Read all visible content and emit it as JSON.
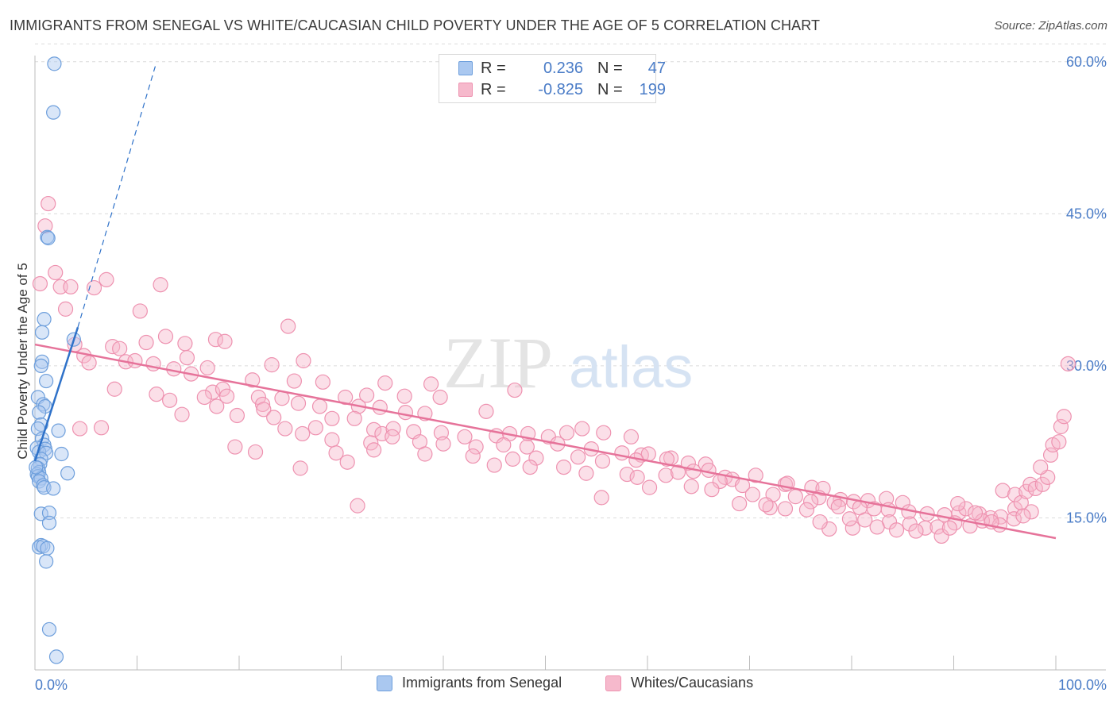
{
  "header": {
    "title": "IMMIGRANTS FROM SENEGAL VS WHITE/CAUCASIAN CHILD POVERTY UNDER THE AGE OF 5 CORRELATION CHART",
    "source": "Source: ZipAtlas.com"
  },
  "watermark": {
    "zip": "ZIP",
    "atlas": "atlas"
  },
  "stats": {
    "senegal": {
      "r_label": "R =",
      "r_value": "0.236",
      "n_label": "N =",
      "n_value": "47"
    },
    "white": {
      "r_label": "R =",
      "r_value": "-0.825",
      "n_label": "N =",
      "n_value": "199"
    }
  },
  "legend": {
    "senegal": "Immigrants from Senegal",
    "white": "Whites/Caucasians"
  },
  "colors": {
    "senegal_fill": "#aac8f0",
    "senegal_stroke": "#6e9fdc",
    "senegal_line": "#2f72c9",
    "white_fill": "#f6b9cc",
    "white_stroke": "#ee92b0",
    "white_line": "#e6739a",
    "tick_label": "#4a7cc7",
    "grid": "#dcdcdc"
  },
  "chart_data": {
    "type": "scatter",
    "xlabel": "",
    "ylabel": "Child Poverty Under the Age of 5",
    "x_tick_labels": [
      "0.0%",
      "100.0%"
    ],
    "y_tick_labels": [
      "15.0%",
      "30.0%",
      "45.0%",
      "60.0%"
    ],
    "y_ticks": [
      15,
      30,
      45,
      60
    ],
    "xlim": [
      0,
      100
    ],
    "ylim": [
      0,
      62
    ],
    "grid": true,
    "legend_position": "bottom",
    "series": [
      {
        "name": "Immigrants from Senegal",
        "r": 0.236,
        "n": 47,
        "trend_solid": [
          [
            0,
            20.6
          ],
          [
            4.2,
            33.8
          ]
        ],
        "trend_dashed": [
          [
            4.2,
            33.8
          ],
          [
            11.8,
            59.6
          ]
        ],
        "points": [
          [
            1.9,
            59.8
          ],
          [
            1.8,
            55.0
          ],
          [
            1.2,
            42.7
          ],
          [
            1.3,
            42.6
          ],
          [
            0.9,
            34.6
          ],
          [
            0.7,
            33.3
          ],
          [
            3.8,
            32.6
          ],
          [
            0.7,
            30.4
          ],
          [
            0.6,
            30.0
          ],
          [
            1.1,
            28.5
          ],
          [
            0.3,
            26.9
          ],
          [
            0.8,
            26.2
          ],
          [
            1.0,
            26.0
          ],
          [
            0.4,
            25.4
          ],
          [
            0.6,
            24.2
          ],
          [
            2.3,
            23.6
          ],
          [
            0.3,
            23.8
          ],
          [
            0.7,
            22.8
          ],
          [
            0.9,
            22.2
          ],
          [
            0.2,
            21.9
          ],
          [
            1.0,
            21.8
          ],
          [
            0.4,
            21.5
          ],
          [
            1.1,
            21.4
          ],
          [
            2.6,
            21.3
          ],
          [
            0.6,
            20.8
          ],
          [
            0.5,
            20.3
          ],
          [
            0.3,
            19.9
          ],
          [
            0.4,
            19.5
          ],
          [
            0.2,
            19.3
          ],
          [
            3.2,
            19.4
          ],
          [
            0.3,
            19.1
          ],
          [
            0.6,
            18.9
          ],
          [
            0.4,
            18.6
          ],
          [
            0.8,
            18.2
          ],
          [
            0.9,
            18.0
          ],
          [
            1.8,
            17.9
          ],
          [
            0.6,
            15.4
          ],
          [
            1.4,
            15.5
          ],
          [
            1.4,
            14.5
          ],
          [
            0.6,
            12.3
          ],
          [
            0.4,
            12.1
          ],
          [
            0.8,
            12.2
          ],
          [
            1.2,
            12.0
          ],
          [
            1.1,
            10.7
          ],
          [
            1.4,
            4.0
          ],
          [
            2.1,
            1.3
          ],
          [
            0.1,
            20.0
          ]
        ]
      },
      {
        "name": "Whites/Caucasians",
        "r": -0.825,
        "n": 199,
        "trend": [
          [
            0,
            32.1
          ],
          [
            100,
            13.0
          ]
        ],
        "points": [
          [
            1.3,
            46.0
          ],
          [
            1.0,
            43.8
          ],
          [
            2.0,
            39.2
          ],
          [
            0.5,
            38.1
          ],
          [
            2.5,
            37.8
          ],
          [
            3.5,
            37.8
          ],
          [
            5.8,
            37.7
          ],
          [
            7.0,
            38.5
          ],
          [
            12.3,
            38.0
          ],
          [
            3.0,
            35.6
          ],
          [
            10.3,
            35.4
          ],
          [
            24.8,
            33.9
          ],
          [
            12.8,
            32.9
          ],
          [
            3.9,
            32.1
          ],
          [
            10.9,
            32.3
          ],
          [
            14.7,
            32.2
          ],
          [
            17.7,
            32.6
          ],
          [
            18.6,
            32.4
          ],
          [
            7.6,
            31.9
          ],
          [
            8.3,
            31.7
          ],
          [
            4.8,
            31.0
          ],
          [
            8.9,
            30.4
          ],
          [
            9.8,
            30.5
          ],
          [
            5.3,
            30.3
          ],
          [
            11.6,
            30.2
          ],
          [
            14.9,
            30.8
          ],
          [
            23.2,
            30.1
          ],
          [
            26.3,
            30.5
          ],
          [
            16.9,
            29.8
          ],
          [
            13.6,
            29.7
          ],
          [
            15.3,
            29.2
          ],
          [
            21.3,
            28.6
          ],
          [
            25.4,
            28.5
          ],
          [
            28.2,
            28.4
          ],
          [
            34.3,
            28.3
          ],
          [
            38.8,
            28.2
          ],
          [
            7.8,
            27.7
          ],
          [
            11.9,
            27.2
          ],
          [
            17.4,
            27.4
          ],
          [
            18.4,
            27.7
          ],
          [
            21.9,
            26.9
          ],
          [
            24.2,
            26.8
          ],
          [
            16.6,
            26.9
          ],
          [
            18.8,
            27.0
          ],
          [
            30.4,
            26.9
          ],
          [
            32.5,
            27.1
          ],
          [
            36.2,
            27.0
          ],
          [
            39.7,
            26.9
          ],
          [
            47.0,
            27.6
          ],
          [
            13.2,
            26.6
          ],
          [
            17.8,
            26.0
          ],
          [
            22.3,
            26.2
          ],
          [
            25.8,
            26.3
          ],
          [
            27.9,
            26.0
          ],
          [
            31.7,
            26.0
          ],
          [
            33.8,
            25.9
          ],
          [
            36.3,
            25.4
          ],
          [
            14.4,
            25.2
          ],
          [
            19.8,
            25.1
          ],
          [
            22.4,
            25.7
          ],
          [
            23.4,
            24.9
          ],
          [
            29.1,
            24.8
          ],
          [
            31.3,
            24.8
          ],
          [
            38.2,
            25.3
          ],
          [
            44.2,
            25.5
          ],
          [
            4.4,
            23.8
          ],
          [
            6.5,
            23.9
          ],
          [
            24.5,
            23.8
          ],
          [
            27.5,
            23.9
          ],
          [
            33.2,
            23.7
          ],
          [
            34.0,
            23.3
          ],
          [
            35.1,
            23.8
          ],
          [
            37.1,
            23.5
          ],
          [
            39.8,
            23.4
          ],
          [
            42.1,
            23.0
          ],
          [
            45.2,
            23.1
          ],
          [
            46.5,
            23.3
          ],
          [
            48.3,
            23.3
          ],
          [
            50.3,
            23.0
          ],
          [
            52.1,
            23.4
          ],
          [
            53.6,
            23.8
          ],
          [
            55.7,
            23.4
          ],
          [
            58.4,
            23.0
          ],
          [
            19.6,
            22.0
          ],
          [
            26.2,
            23.3
          ],
          [
            29.1,
            22.7
          ],
          [
            32.9,
            22.4
          ],
          [
            35.0,
            23.0
          ],
          [
            37.7,
            22.5
          ],
          [
            40.0,
            22.3
          ],
          [
            43.2,
            22.0
          ],
          [
            45.9,
            22.2
          ],
          [
            48.2,
            22.0
          ],
          [
            51.2,
            22.3
          ],
          [
            54.5,
            21.8
          ],
          [
            57.5,
            21.4
          ],
          [
            59.4,
            21.2
          ],
          [
            60.1,
            21.3
          ],
          [
            62.3,
            20.9
          ],
          [
            21.6,
            21.5
          ],
          [
            29.5,
            21.4
          ],
          [
            33.2,
            21.7
          ],
          [
            38.2,
            21.3
          ],
          [
            42.9,
            21.1
          ],
          [
            46.8,
            20.8
          ],
          [
            49.1,
            20.9
          ],
          [
            53.2,
            21.0
          ],
          [
            55.6,
            20.6
          ],
          [
            58.9,
            20.7
          ],
          [
            61.9,
            20.8
          ],
          [
            64.0,
            20.4
          ],
          [
            65.7,
            20.3
          ],
          [
            26.0,
            19.9
          ],
          [
            30.6,
            20.5
          ],
          [
            45.0,
            20.2
          ],
          [
            48.5,
            20.0
          ],
          [
            51.8,
            20.0
          ],
          [
            54.0,
            19.4
          ],
          [
            58.0,
            19.3
          ],
          [
            59.0,
            19.0
          ],
          [
            61.8,
            19.2
          ],
          [
            63.0,
            19.5
          ],
          [
            64.5,
            19.6
          ],
          [
            66.0,
            19.7
          ],
          [
            67.6,
            19.0
          ],
          [
            68.3,
            18.8
          ],
          [
            70.6,
            19.2
          ],
          [
            73.5,
            18.3
          ],
          [
            67.1,
            18.6
          ],
          [
            69.3,
            18.2
          ],
          [
            73.7,
            18.4
          ],
          [
            76.1,
            18.0
          ],
          [
            77.2,
            17.9
          ],
          [
            60.2,
            18.0
          ],
          [
            64.3,
            18.1
          ],
          [
            66.3,
            17.8
          ],
          [
            70.3,
            17.3
          ],
          [
            72.3,
            17.3
          ],
          [
            74.5,
            17.1
          ],
          [
            76.8,
            17.0
          ],
          [
            78.9,
            16.8
          ],
          [
            80.2,
            16.6
          ],
          [
            81.6,
            16.7
          ],
          [
            83.4,
            16.9
          ],
          [
            76.0,
            16.6
          ],
          [
            78.3,
            16.5
          ],
          [
            85.0,
            16.5
          ],
          [
            72.0,
            16.0
          ],
          [
            73.5,
            15.9
          ],
          [
            75.6,
            15.8
          ],
          [
            78.7,
            16.1
          ],
          [
            80.8,
            16.0
          ],
          [
            82.2,
            15.9
          ],
          [
            83.6,
            15.8
          ],
          [
            85.6,
            15.6
          ],
          [
            87.4,
            15.4
          ],
          [
            89.1,
            15.3
          ],
          [
            90.5,
            15.5
          ],
          [
            91.2,
            15.9
          ],
          [
            92.5,
            15.4
          ],
          [
            93.6,
            15.0
          ],
          [
            94.6,
            15.1
          ],
          [
            90.4,
            16.4
          ],
          [
            96.0,
            15.9
          ],
          [
            97.6,
            15.6
          ],
          [
            69.0,
            16.4
          ],
          [
            71.6,
            16.3
          ],
          [
            55.5,
            17.0
          ],
          [
            31.6,
            16.2
          ],
          [
            83.7,
            14.6
          ],
          [
            85.7,
            14.4
          ],
          [
            87.2,
            14.0
          ],
          [
            88.4,
            14.1
          ],
          [
            90.1,
            14.5
          ],
          [
            91.6,
            14.2
          ],
          [
            92.8,
            14.7
          ],
          [
            94.5,
            14.3
          ],
          [
            95.9,
            14.9
          ],
          [
            96.8,
            15.2
          ],
          [
            82.5,
            14.1
          ],
          [
            80.1,
            14.0
          ],
          [
            77.8,
            13.9
          ],
          [
            76.9,
            14.6
          ],
          [
            79.8,
            14.9
          ],
          [
            81.3,
            14.8
          ],
          [
            84.4,
            13.8
          ],
          [
            86.3,
            13.7
          ],
          [
            88.8,
            13.2
          ],
          [
            89.6,
            14.0
          ],
          [
            93.7,
            14.6
          ],
          [
            92.1,
            15.5
          ],
          [
            94.8,
            17.7
          ],
          [
            96.0,
            17.3
          ],
          [
            96.6,
            16.5
          ],
          [
            97.1,
            17.6
          ],
          [
            97.5,
            18.3
          ],
          [
            98.0,
            17.9
          ],
          [
            98.7,
            18.3
          ],
          [
            99.2,
            19.0
          ],
          [
            98.5,
            20.0
          ],
          [
            99.5,
            21.2
          ],
          [
            99.7,
            22.2
          ],
          [
            100.3,
            22.5
          ],
          [
            100.5,
            24.0
          ],
          [
            100.8,
            25.0
          ],
          [
            101.2,
            30.2
          ]
        ]
      }
    ]
  }
}
